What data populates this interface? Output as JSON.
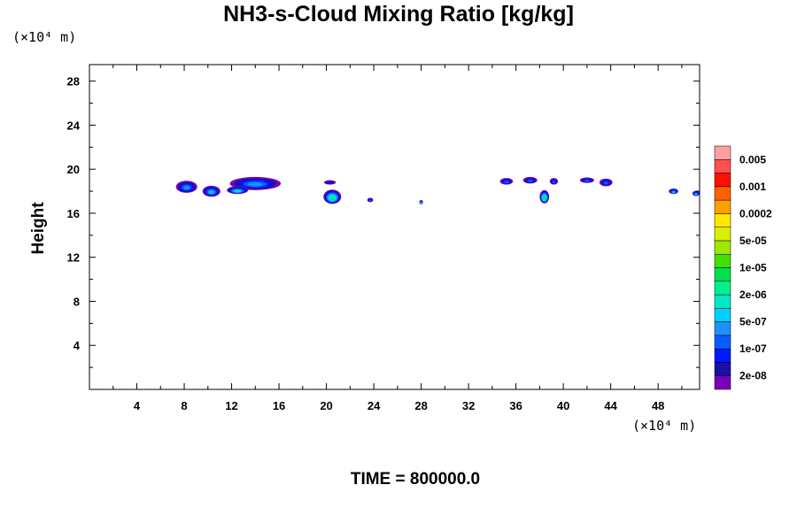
{
  "chart_data": {
    "type": "contour",
    "title": "NH3-s-Cloud Mixing Ratio [kg/kg]",
    "xunit": "(×10⁴ m)",
    "yunit": "(×10⁴ m)",
    "ylabel": "Height",
    "xlim": [
      0,
      51.5
    ],
    "ylim": [
      0,
      29.5
    ],
    "xticks": [
      4,
      8,
      12,
      16,
      20,
      24,
      28,
      32,
      36,
      40,
      44,
      48
    ],
    "yticks": [
      4,
      8,
      12,
      16,
      20,
      24,
      28
    ],
    "footer": "TIME = 800000.0",
    "colorbar": {
      "colors": [
        "#7b00b8",
        "#1a10a8",
        "#0018ff",
        "#0a5cff",
        "#1e90ff",
        "#00cfff",
        "#00e8c8",
        "#00f08c",
        "#00e050",
        "#40e000",
        "#a0e800",
        "#d8f000",
        "#ffe800",
        "#ffa000",
        "#ff6000",
        "#ff1000",
        "#ff5050",
        "#ff9f9f"
      ],
      "labels": [
        "2e-08",
        "1e-07",
        "5e-07",
        "2e-06",
        "1e-05",
        "5e-05",
        "0.0002",
        "0.001",
        "0.005"
      ]
    },
    "clouds": [
      {
        "x": 8.2,
        "y": 18.4,
        "w": 1.8,
        "h": 1.1,
        "level": 4
      },
      {
        "x": 10.3,
        "y": 18.0,
        "w": 1.5,
        "h": 1.0,
        "level": 5
      },
      {
        "x": 14.0,
        "y": 18.7,
        "w": 4.3,
        "h": 1.2,
        "level": 4
      },
      {
        "x": 12.5,
        "y": 18.1,
        "w": 1.8,
        "h": 0.7,
        "level": 6
      },
      {
        "x": 20.5,
        "y": 17.5,
        "w": 1.5,
        "h": 1.3,
        "level": 8
      },
      {
        "x": 20.3,
        "y": 18.8,
        "w": 1.0,
        "h": 0.4,
        "level": 2
      },
      {
        "x": 23.7,
        "y": 17.2,
        "w": 0.5,
        "h": 0.4,
        "level": 3
      },
      {
        "x": 28.0,
        "y": 17.0,
        "w": 0.3,
        "h": 0.4,
        "level": 7
      },
      {
        "x": 35.2,
        "y": 18.9,
        "w": 1.1,
        "h": 0.6,
        "level": 3
      },
      {
        "x": 37.2,
        "y": 19.0,
        "w": 1.2,
        "h": 0.6,
        "level": 3
      },
      {
        "x": 38.4,
        "y": 17.5,
        "w": 0.8,
        "h": 1.2,
        "level": 9
      },
      {
        "x": 39.2,
        "y": 18.9,
        "w": 0.7,
        "h": 0.6,
        "level": 3
      },
      {
        "x": 42.0,
        "y": 19.0,
        "w": 1.2,
        "h": 0.5,
        "level": 3
      },
      {
        "x": 43.6,
        "y": 18.8,
        "w": 1.1,
        "h": 0.7,
        "level": 3
      },
      {
        "x": 49.3,
        "y": 18.0,
        "w": 0.8,
        "h": 0.5,
        "level": 5
      },
      {
        "x": 51.2,
        "y": 17.8,
        "w": 0.6,
        "h": 0.5,
        "level": 5
      }
    ]
  }
}
